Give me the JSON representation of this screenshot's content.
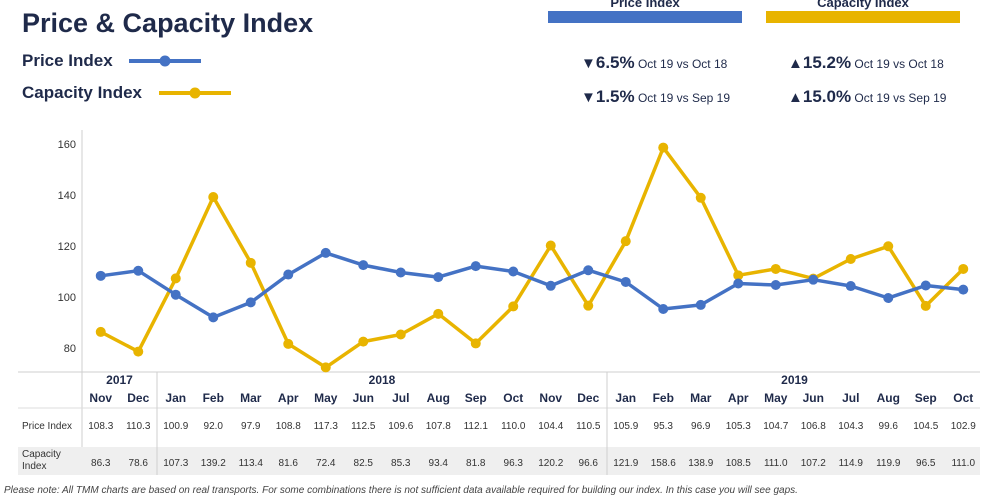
{
  "header": {
    "title": "Price & Capacity Index",
    "legend": [
      {
        "label": "Price Index",
        "color": "#4472c4"
      },
      {
        "label": "Capacity Index",
        "color": "#e8b400"
      }
    ],
    "columns": [
      {
        "label": "Price Index",
        "color": "#4472c4"
      },
      {
        "label": "Capacity Index",
        "color": "#e8b400"
      }
    ],
    "stats": {
      "price_yoy": {
        "arrow": "▼",
        "value": "6.5%",
        "note": "Oct 19 vs Oct 18"
      },
      "price_mom": {
        "arrow": "▼",
        "value": "1.5%",
        "note": "Oct 19 vs Sep 19"
      },
      "capacity_yoy": {
        "arrow": "▲",
        "value": "15.2%",
        "note": "Oct 19 vs Oct 18"
      },
      "capacity_mom": {
        "arrow": "▲",
        "value": "15.0%",
        "note": "Oct 19 vs Sep 19"
      }
    }
  },
  "chart_data": {
    "type": "line",
    "y_ticks": [
      80,
      100,
      120,
      140,
      160
    ],
    "ylim": [
      70,
      162
    ],
    "grid": false,
    "years": [
      {
        "label": "2017",
        "span": [
          0,
          1
        ]
      },
      {
        "label": "2018",
        "span": [
          2,
          13
        ]
      },
      {
        "label": "2019",
        "span": [
          14,
          23
        ]
      }
    ],
    "categories": [
      "Nov",
      "Dec",
      "Jan",
      "Feb",
      "Mar",
      "Apr",
      "May",
      "Jun",
      "Jul",
      "Aug",
      "Sep",
      "Oct",
      "Nov",
      "Dec",
      "Jan",
      "Feb",
      "Mar",
      "Apr",
      "May",
      "Jun",
      "Jul",
      "Aug",
      "Sep",
      "Oct"
    ],
    "series": [
      {
        "name": "Price Index",
        "color": "#4472c4",
        "values": [
          108.3,
          110.3,
          100.9,
          92.0,
          97.9,
          108.8,
          117.3,
          112.5,
          109.6,
          107.8,
          112.1,
          110.0,
          104.4,
          110.5,
          105.9,
          95.3,
          96.9,
          105.3,
          104.7,
          106.8,
          104.3,
          99.6,
          104.5,
          102.9
        ]
      },
      {
        "name": "Capacity Index",
        "color": "#e8b400",
        "values": [
          86.3,
          78.6,
          107.3,
          139.2,
          113.4,
          81.6,
          72.4,
          82.5,
          85.3,
          93.4,
          81.8,
          96.3,
          120.2,
          96.6,
          121.9,
          158.6,
          138.9,
          108.5,
          111.0,
          107.2,
          114.9,
          119.9,
          96.5,
          111.0
        ]
      }
    ],
    "table_rows": [
      {
        "label": "Price Index",
        "values": [
          "108.3",
          "110.3",
          "100.9",
          "92.0",
          "97.9",
          "108.8",
          "117.3",
          "112.5",
          "109.6",
          "107.8",
          "112.1",
          "110.0",
          "104.4",
          "110.5",
          "105.9",
          "95.3",
          "96.9",
          "105.3",
          "104.7",
          "106.8",
          "104.3",
          "99.6",
          "104.5",
          "102.9"
        ]
      },
      {
        "label": "Capacity Index",
        "values": [
          "86.3",
          "78.6",
          "107.3",
          "139.2",
          "113.4",
          "81.6",
          "72.4",
          "82.5",
          "85.3",
          "93.4",
          "81.8",
          "96.3",
          "120.2",
          "96.6",
          "121.9",
          "158.6",
          "138.9",
          "108.5",
          "111.0",
          "107.2",
          "114.9",
          "119.9",
          "96.5",
          "111.0"
        ]
      }
    ]
  },
  "footer": {
    "note": "Please note: All TMM charts are based on real transports. For some combinations there is not sufficient data available required for building our index. In this case you will see gaps."
  }
}
